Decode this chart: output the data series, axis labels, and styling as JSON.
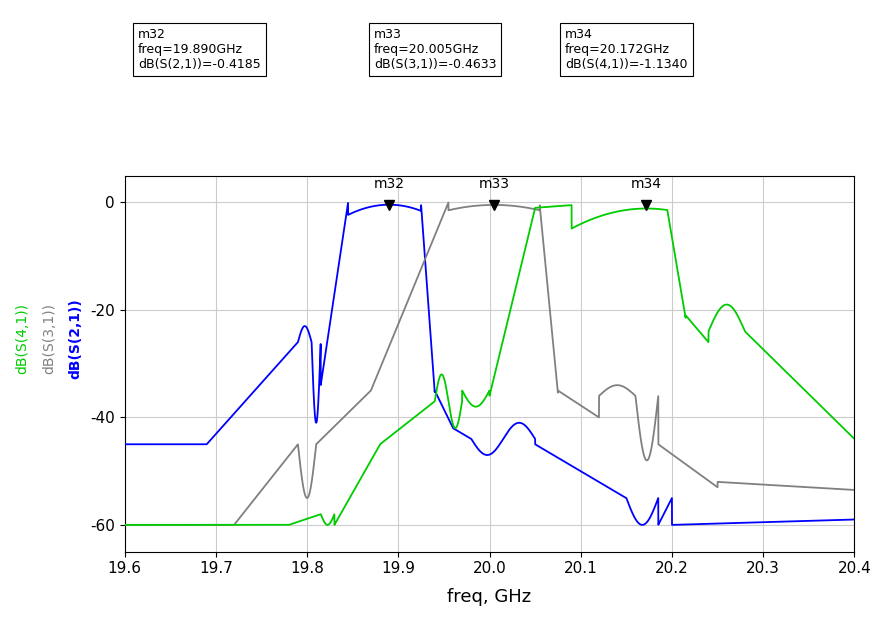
{
  "xlim": [
    19.6,
    20.4
  ],
  "ylim": [
    -65,
    5
  ],
  "xlabel": "freq, GHz",
  "yticks": [
    0,
    -20,
    -40,
    -60
  ],
  "xticks": [
    19.6,
    19.7,
    19.8,
    19.9,
    20.0,
    20.1,
    20.2,
    20.3,
    20.4
  ],
  "grid_color": "#cccccc",
  "bg_color": "#ffffff",
  "markers": [
    {
      "name": "m32",
      "freq": 19.89,
      "value": -0.4185,
      "param": "dB(S(2,1))=-0.4185"
    },
    {
      "name": "m33",
      "freq": 20.005,
      "value": -0.4633,
      "param": "dB(S(3,1))=-0.4633"
    },
    {
      "name": "m34",
      "freq": 20.172,
      "value": -1.134,
      "param": "dB(S(4,1))=-1.1340"
    }
  ],
  "info_boxes": [
    "m32\nfreq=19.890GHz\ndB(S(2,1))=-0.4185",
    "m33\nfreq=20.005GHz\ndB(S(3,1))=-0.4633",
    "m34\nfreq=20.172GHz\ndB(S(4,1))=-1.1340"
  ],
  "legend_labels": [
    "dB(S(4,1))",
    "dB(S(3,1))",
    "dB(S(2,1))"
  ],
  "legend_colors": [
    "#00cc00",
    "#808080",
    "#0000ff"
  ],
  "line_colors": {
    "S21": "#0000ff",
    "S31": "#808080",
    "S41": "#00cc00"
  }
}
